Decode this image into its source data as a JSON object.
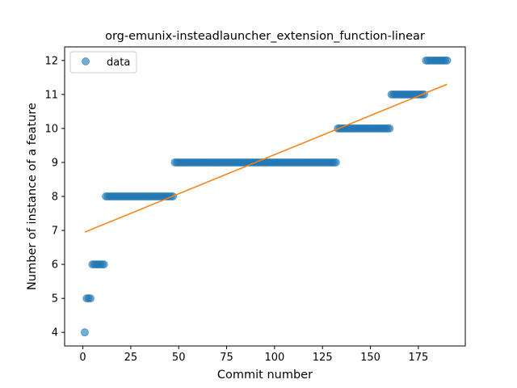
{
  "chart_data": {
    "type": "scatter",
    "title": "org-emunix-insteadlauncher_extension_function-linear",
    "xlabel": "Commit number",
    "ylabel": "Number of instance of a feature",
    "xlim": [
      -9.5,
      199.5
    ],
    "ylim": [
      3.6,
      12.4
    ],
    "xticks": [
      0,
      25,
      50,
      75,
      100,
      125,
      150,
      175
    ],
    "yticks": [
      4,
      5,
      6,
      7,
      8,
      9,
      10,
      11,
      12
    ],
    "grid": false,
    "legend": {
      "position": "top-left",
      "entries": [
        "data"
      ]
    },
    "colors": {
      "points": "#1f77b4",
      "fit": "#ff7f0e"
    },
    "series": [
      {
        "name": "data",
        "kind": "points",
        "segments": [
          {
            "x_start": 1,
            "x_end": 1,
            "y": 4
          },
          {
            "x_start": 2,
            "x_end": 4,
            "y": 5
          },
          {
            "x_start": 5,
            "x_end": 11,
            "y": 6
          },
          {
            "x_start": 12,
            "x_end": 47,
            "y": 8
          },
          {
            "x_start": 48,
            "x_end": 132,
            "y": 9
          },
          {
            "x_start": 133,
            "x_end": 160,
            "y": 10
          },
          {
            "x_start": 161,
            "x_end": 178,
            "y": 11
          },
          {
            "x_start": 179,
            "x_end": 190,
            "y": 12
          }
        ]
      },
      {
        "kind": "line",
        "x": [
          1,
          190
        ],
        "y": [
          6.95,
          11.3
        ]
      }
    ]
  }
}
